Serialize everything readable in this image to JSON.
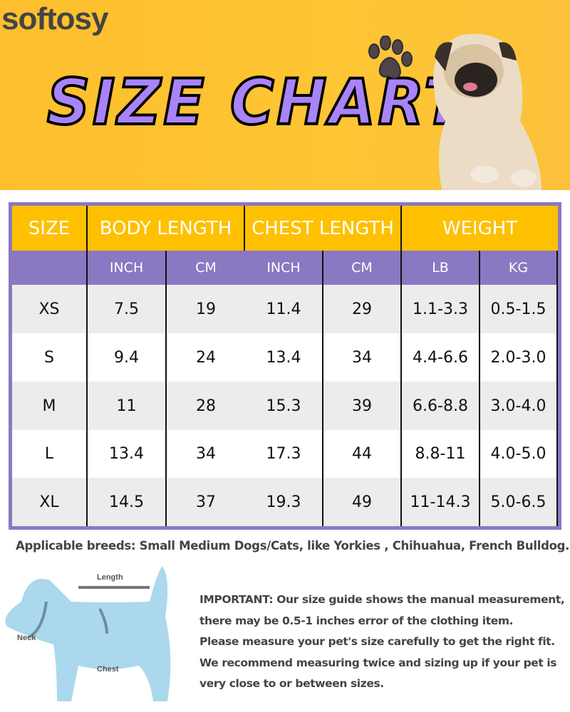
{
  "brand": "softosy",
  "title": "SIZE CHART",
  "table": {
    "headers": [
      "SIZE",
      "BODY LENGTH",
      "CHEST LENGTH",
      "WEIGHT"
    ],
    "subheaders": [
      "",
      "INCH",
      "CM",
      "INCH",
      "CM",
      "LB",
      "KG"
    ],
    "rows": [
      [
        "XS",
        "7.5",
        "19",
        "11.4",
        "29",
        "1.1-3.3",
        "0.5-1.5"
      ],
      [
        "S",
        "9.4",
        "24",
        "13.4",
        "34",
        "4.4-6.6",
        "2.0-3.0"
      ],
      [
        "M",
        "11",
        "28",
        "15.3",
        "39",
        "6.6-8.8",
        "3.0-4.0"
      ],
      [
        "L",
        "13.4",
        "34",
        "17.3",
        "44",
        "8.8-11",
        "4.0-5.0"
      ],
      [
        "XL",
        "14.5",
        "37",
        "19.3",
        "49",
        "11-14.3",
        "5.0-6.5"
      ]
    ]
  },
  "breeds": "Applicable breeds: Small Medium Dogs/Cats, like Yorkies , Chihuahua, French Bulldog.",
  "diagram": {
    "length": "Length",
    "neck": "Neck",
    "chest": "Chest"
  },
  "note": [
    "IMPORTANT: Our size guide shows the manual measurement,",
    "there may be 0.5-1 inches error of the clothing item.",
    "Please measure your pet's size carefully to get the right fit.",
    "We recommend measuring twice and sizing up if your pet is",
    "very close to or between sizes."
  ],
  "colors": {
    "banner": "#fec534",
    "header": "#fec000",
    "purple": "#8a78c2",
    "title": "#a884f8"
  }
}
